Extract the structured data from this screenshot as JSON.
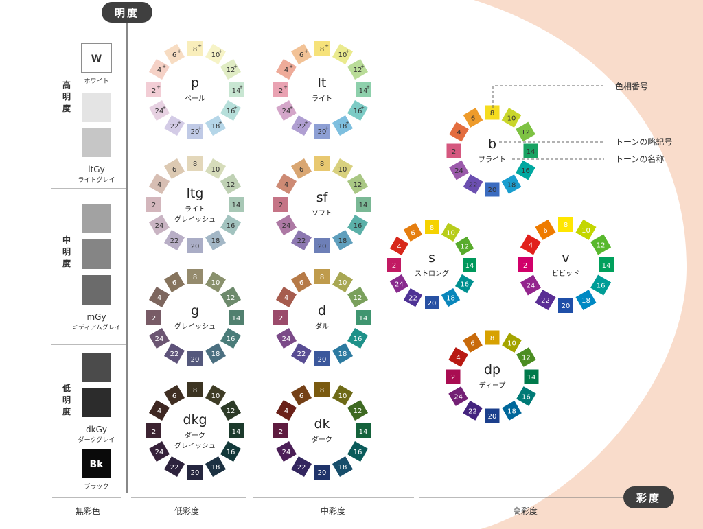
{
  "axes": {
    "brightness_label": "明度",
    "saturation_label": "彩度",
    "achromatic_label": "無彩色",
    "low_sat_label": "低彩度",
    "mid_sat_label": "中彩度",
    "high_sat_label": "高彩度"
  },
  "brightness_groups": {
    "high": "高明度",
    "mid": "中明度",
    "low": "低明度"
  },
  "grays": [
    {
      "code": "W",
      "name": "ホワイト",
      "fill": "#ffffff",
      "outlined": true,
      "code_inside": true
    },
    {
      "code": "",
      "name": "",
      "fill": "#e4e4e4"
    },
    {
      "code": "ltGy",
      "name": "ライトグレイ",
      "fill": "#c6c6c6"
    },
    {
      "code": "",
      "name": "",
      "fill": "#a2a2a2"
    },
    {
      "code": "",
      "name": "",
      "fill": "#858585"
    },
    {
      "code": "mGy",
      "name": "ミディアムグレイ",
      "fill": "#6b6b6b"
    },
    {
      "code": "",
      "name": "",
      "fill": "#4b4b4b"
    },
    {
      "code": "dkGy",
      "name": "ダークグレイ",
      "fill": "#2c2c2c"
    },
    {
      "code": "Bk",
      "name": "ブラック",
      "fill": "#0a0a0a",
      "code_inside": true
    }
  ],
  "annotations": {
    "hue_number": "色相番号",
    "tone_symbol": "トーンの略記号",
    "tone_name": "トーンの名称"
  },
  "tones": [
    {
      "code": "p",
      "name_lines": [
        "ペール"
      ],
      "plus": true,
      "colors": [
        "#f9eebb",
        "#f6f3c6",
        "#e0ecc4",
        "#c8e6d2",
        "#b6dfda",
        "#b5d6e8",
        "#c0cae6",
        "#d3cbe6",
        "#e7d1e2",
        "#f2cdd5",
        "#f5d1c6",
        "#f7dcc2"
      ],
      "text": "#333333"
    },
    {
      "code": "lt",
      "name_lines": [
        "ライト"
      ],
      "plus": true,
      "colors": [
        "#f6e27a",
        "#eaea8e",
        "#b9dc98",
        "#8ed0ac",
        "#7ccbc5",
        "#7ebfdf",
        "#8d9fd4",
        "#b09fd2",
        "#d4a6c9",
        "#e9a2b2",
        "#eeab99",
        "#f2c296"
      ],
      "text": "#333333"
    },
    {
      "code": "ltg",
      "name_lines": [
        "ライト",
        "グレイッシュ"
      ],
      "plus": false,
      "colors": [
        "#e3d7ba",
        "#d6dcba",
        "#bfd1b4",
        "#a8c8b6",
        "#a2c3bf",
        "#a3b7c6",
        "#aaadc6",
        "#b8aec6",
        "#c9b4c3",
        "#d3b6bc",
        "#d7beb3",
        "#dcc9b2"
      ],
      "text": "#333333"
    },
    {
      "code": "sf",
      "name_lines": [
        "ソフト"
      ],
      "plus": false,
      "colors": [
        "#e8c870",
        "#d8d07e",
        "#a9c784",
        "#7ab895",
        "#5bb0a8",
        "#5f9fbd",
        "#6d7fb7",
        "#8d78b1",
        "#ad79a4",
        "#c57486",
        "#cd8a74",
        "#d9a672"
      ],
      "text": "#333333"
    },
    {
      "code": "g",
      "name_lines": [
        "グレイッシュ"
      ],
      "plus": false,
      "colors": [
        "#958b6d",
        "#8a916d",
        "#6d8a6c",
        "#51806f",
        "#4a7c79",
        "#4b6f80",
        "#54587c",
        "#5e537a",
        "#6b5572",
        "#785b66",
        "#7d665e",
        "#86745d"
      ],
      "text": "#ffffff"
    },
    {
      "code": "d",
      "name_lines": [
        "ダル"
      ],
      "plus": false,
      "colors": [
        "#bf9b4c",
        "#a8a753",
        "#7aa05c",
        "#3f9570",
        "#1e9189",
        "#2c7aa0",
        "#3b589c",
        "#584c93",
        "#7b4a88",
        "#9b4b6b",
        "#a65c4e",
        "#b67a47"
      ],
      "text": "#ffffff"
    },
    {
      "code": "dkg",
      "name_lines": [
        "ダーク",
        "グレイッシュ"
      ],
      "plus": false,
      "colors": [
        "#3c3422",
        "#3e3c25",
        "#2c3a27",
        "#1c3a2c",
        "#13393a",
        "#1c3142",
        "#25263f",
        "#2d233d",
        "#36213a",
        "#3c2331",
        "#3e2722",
        "#3f2e22"
      ],
      "text": "#ffffff"
    },
    {
      "code": "dk",
      "name_lines": [
        "ダーク"
      ],
      "plus": false,
      "colors": [
        "#7a5a10",
        "#6e6a17",
        "#3f6a23",
        "#14623b",
        "#0a5b5a",
        "#174e6b",
        "#1f336a",
        "#33265f",
        "#4b1f57",
        "#5e1b3f",
        "#6a2119",
        "#744016"
      ],
      "text": "#ffffff"
    },
    {
      "code": "b",
      "name_lines": [
        "ブライト"
      ],
      "plus": false,
      "colors": [
        "#f5dc1f",
        "#c9d62a",
        "#7ec243",
        "#19a363",
        "#00a8a0",
        "#1a9ecf",
        "#3b6cc0",
        "#6b4fb0",
        "#9b5aab",
        "#d5587f",
        "#e36d3f",
        "#ee9b2b"
      ],
      "text": "#333333"
    },
    {
      "code": "s",
      "name_lines": [
        "ストロング"
      ],
      "plus": false,
      "colors": [
        "#f5d200",
        "#b7cc1b",
        "#58ab2c",
        "#00985b",
        "#009090",
        "#0a86bb",
        "#2851a3",
        "#4e3295",
        "#882b8d",
        "#c21a63",
        "#d7281b",
        "#e57e10"
      ],
      "text": "#ffffff"
    },
    {
      "code": "v",
      "name_lines": [
        "ビビッド"
      ],
      "plus": false,
      "colors": [
        "#ffe600",
        "#c3d600",
        "#58b82d",
        "#00a05c",
        "#009d96",
        "#0089c3",
        "#1f4fa8",
        "#5a2d94",
        "#93258d",
        "#d1006a",
        "#e1201b",
        "#ee7b00"
      ],
      "text": "#ffffff"
    },
    {
      "code": "dp",
      "name_lines": [
        "ディープ"
      ],
      "plus": false,
      "colors": [
        "#d7a100",
        "#a4a400",
        "#4c8d22",
        "#007a4b",
        "#007a76",
        "#00679a",
        "#1b3f8c",
        "#44247e",
        "#742075",
        "#a90d52",
        "#b81912",
        "#c86a0b"
      ],
      "text": "#ffffff"
    }
  ],
  "hues": [
    "8",
    "10",
    "12",
    "14",
    "16",
    "18",
    "20",
    "22",
    "24",
    "2",
    "4",
    "6"
  ]
}
